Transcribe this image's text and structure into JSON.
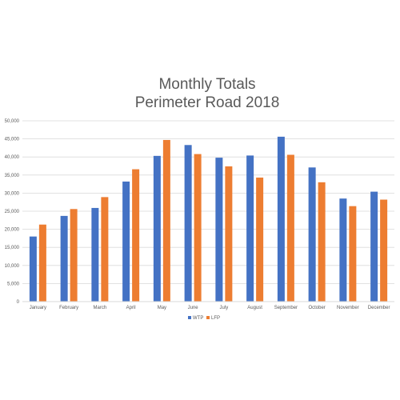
{
  "chart_data": {
    "type": "bar",
    "title": "Monthly Totals",
    "subtitle": "Perimeter Road 2018",
    "xlabel": "",
    "ylabel": "",
    "categories": [
      "January",
      "February",
      "March",
      "April",
      "May",
      "June",
      "July",
      "August",
      "September",
      "October",
      "November",
      "December"
    ],
    "series": [
      {
        "name": "WTP",
        "color": "#4472C4",
        "values": [
          18000,
          23700,
          25900,
          33200,
          40300,
          43300,
          39800,
          40400,
          45600,
          37100,
          28500,
          30400
        ]
      },
      {
        "name": "LFP",
        "color": "#ED7D31",
        "values": [
          21300,
          25600,
          28900,
          36600,
          44700,
          40800,
          37400,
          34300,
          40600,
          33000,
          26400,
          28200
        ]
      }
    ],
    "ylim": [
      0,
      50000
    ],
    "yticks": [
      "0",
      "5,000",
      "10,000",
      "15,000",
      "20,000",
      "25,000",
      "30,000",
      "35,000",
      "40,000",
      "45,000",
      "50,000"
    ],
    "grid": true,
    "legend_position": "bottom"
  }
}
